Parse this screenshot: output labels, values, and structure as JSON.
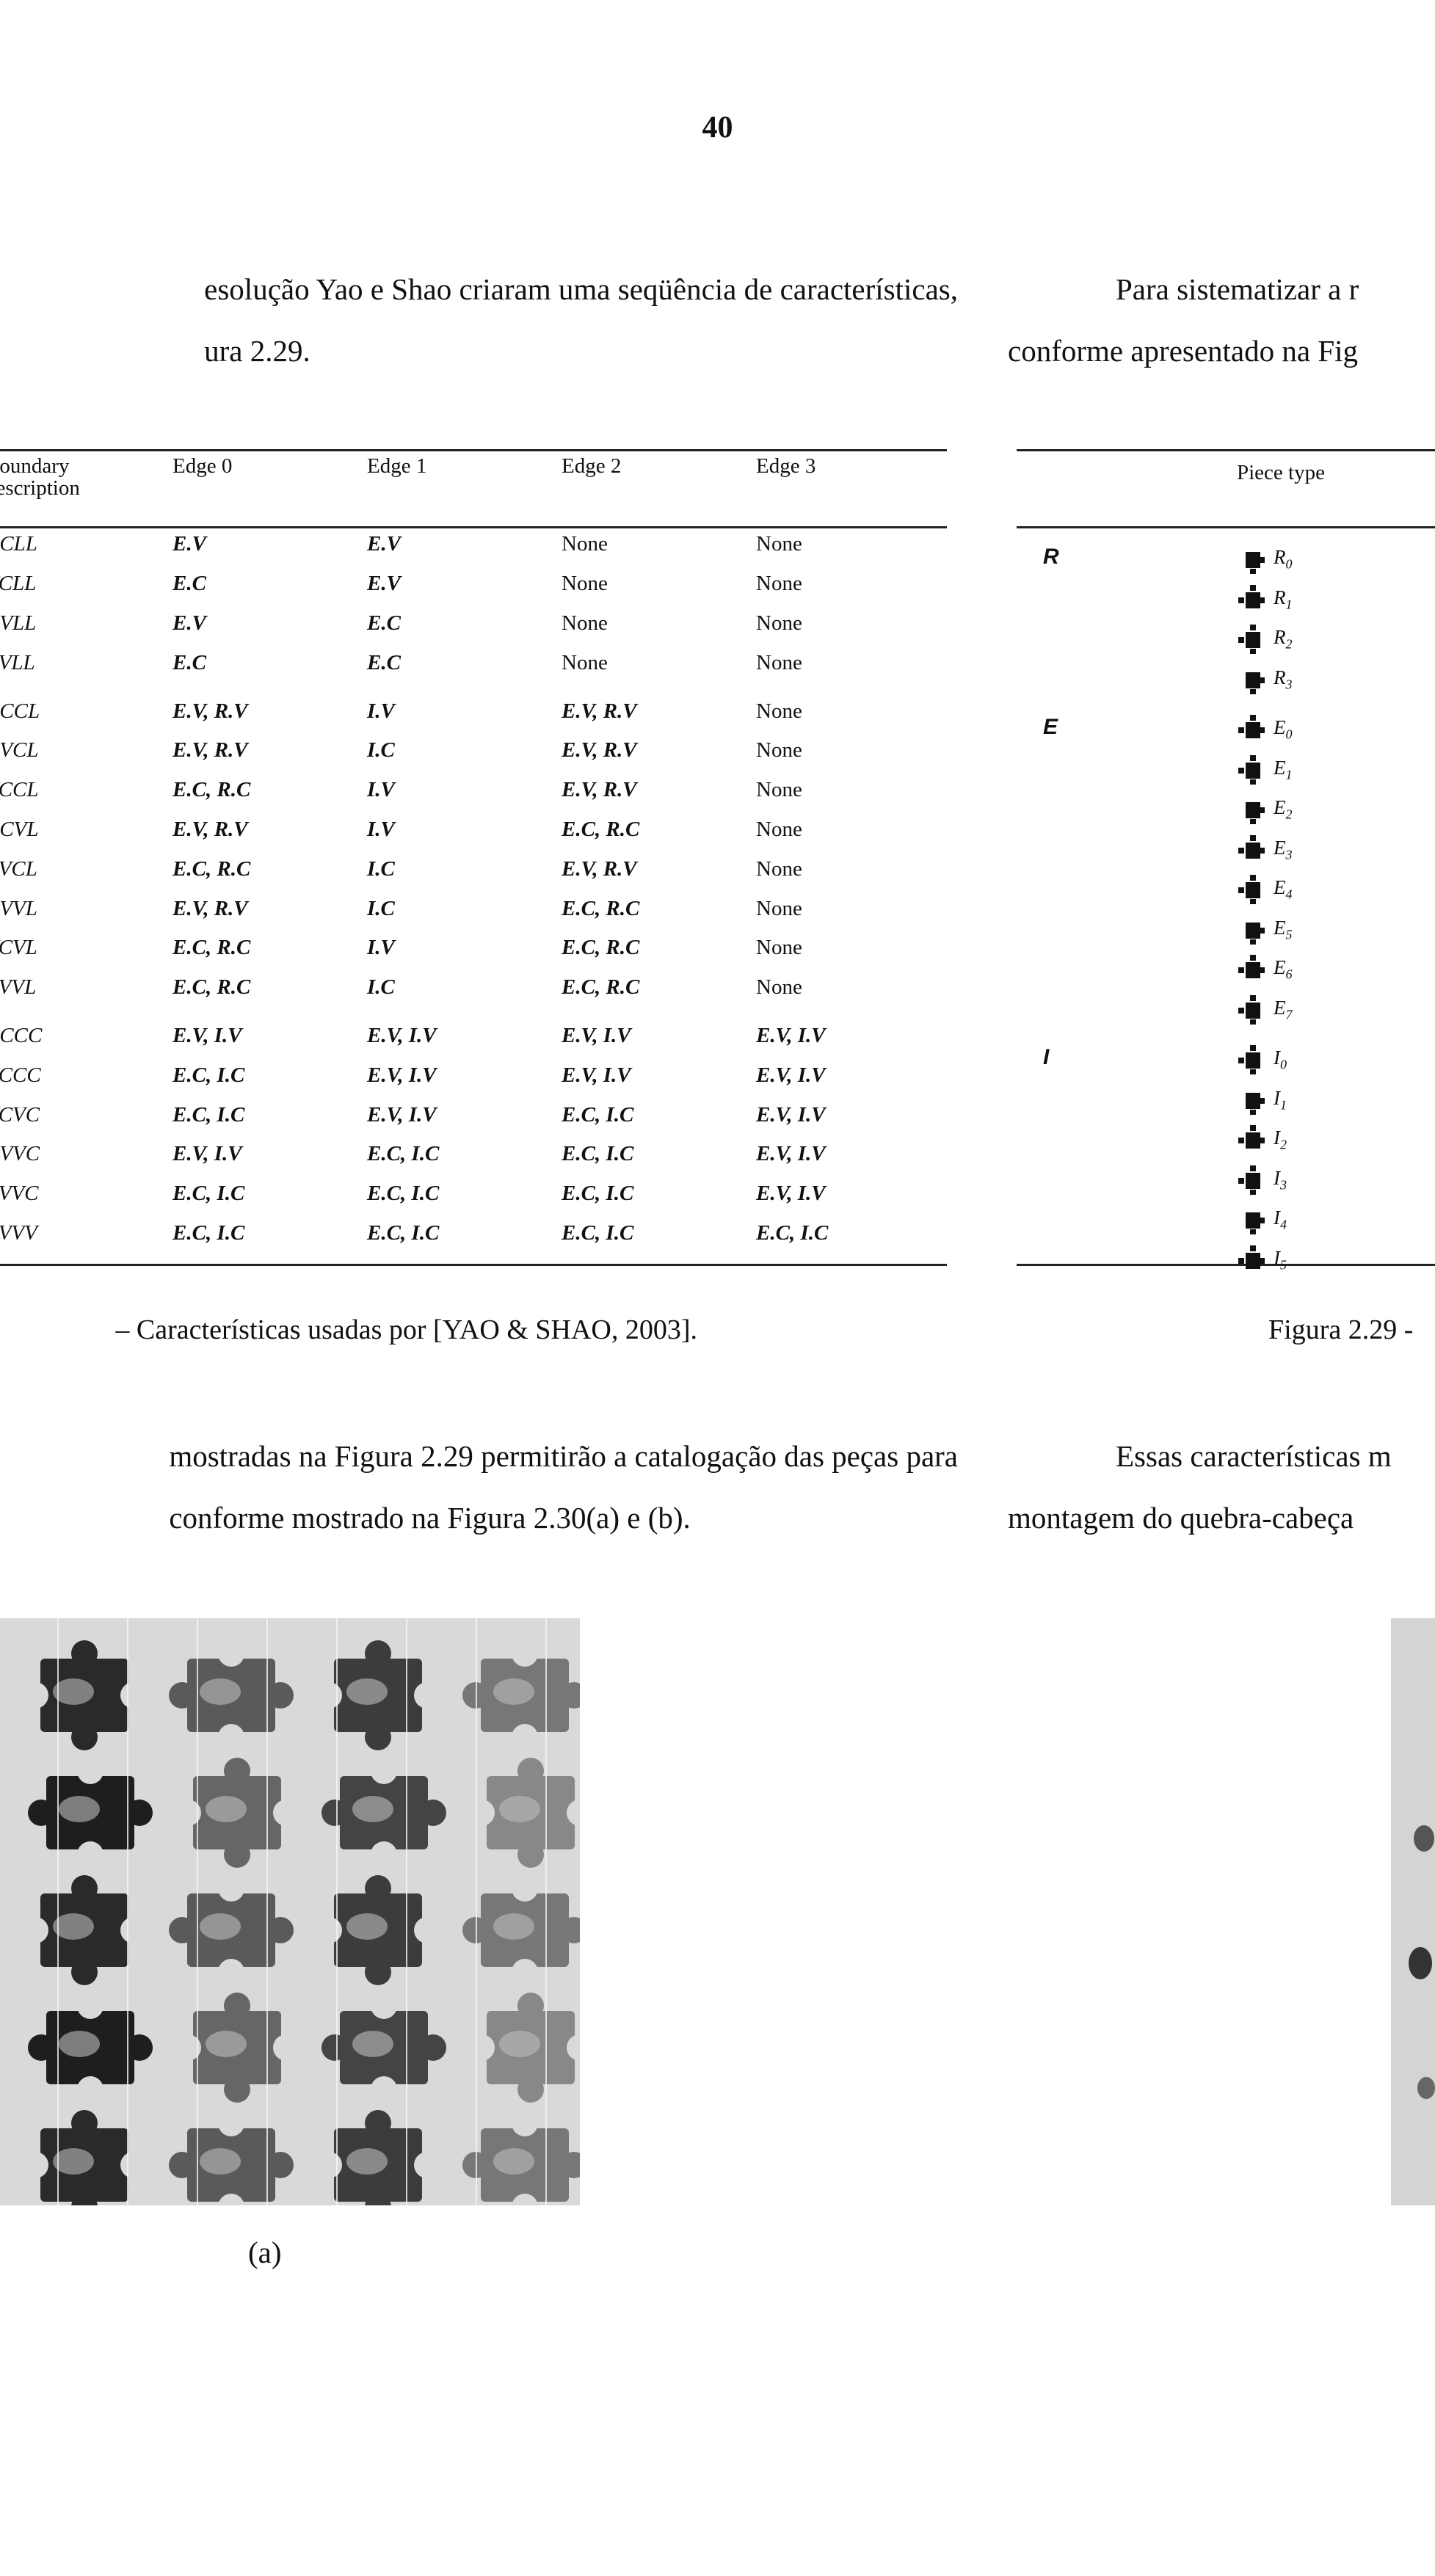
{
  "page_number": "40",
  "paragraph_left_a": {
    "line1": "esolução Yao e Shao criaram uma seqüência de características,",
    "line2": "ura 2.29."
  },
  "paragraph_right_a": {
    "line1": "Para sistematizar a r",
    "line2": "conforme apresentado na Fig"
  },
  "feature_table": {
    "headers": [
      "Boundary\ndescription",
      "Edge 0",
      "Edge 1",
      "Edge 2",
      "Edge 3"
    ],
    "rows": [
      [
        "CCLL",
        "E.V",
        "E.V",
        "None",
        "None"
      ],
      [
        "VCLL",
        "E.C",
        "E.V",
        "None",
        "None"
      ],
      [
        "CVLL",
        "E.V",
        "E.C",
        "None",
        "None"
      ],
      [
        "VVLL",
        "E.C",
        "E.C",
        "None",
        "None"
      ],
      [
        "CCCL",
        "E.V, R.V",
        "I.V",
        "E.V, R.V",
        "None"
      ],
      [
        "CVCL",
        "E.V, R.V",
        "I.C",
        "E.V, R.V",
        "None"
      ],
      [
        "VCCL",
        "E.C, R.C",
        "I.V",
        "E.V, R.V",
        "None"
      ],
      [
        "CCVL",
        "E.V, R.V",
        "I.V",
        "E.C, R.C",
        "None"
      ],
      [
        "VVCL",
        "E.C, R.C",
        "I.C",
        "E.V, R.V",
        "None"
      ],
      [
        "CVVL",
        "E.V, R.V",
        "I.C",
        "E.C, R.C",
        "None"
      ],
      [
        "VCVL",
        "E.C, R.C",
        "I.V",
        "E.C, R.C",
        "None"
      ],
      [
        "VVVL",
        "E.C, R.C",
        "I.C",
        "E.C, R.C",
        "None"
      ],
      [
        "CCCC",
        "E.V, I.V",
        "E.V, I.V",
        "E.V, I.V",
        "E.V, I.V"
      ],
      [
        "VCCC",
        "E.C, I.C",
        "E.V, I.V",
        "E.V, I.V",
        "E.V, I.V"
      ],
      [
        "VCVC",
        "E.C, I.C",
        "E.V, I.V",
        "E.C, I.C",
        "E.V, I.V"
      ],
      [
        "CVVC",
        "E.V, I.V",
        "E.C, I.C",
        "E.C, I.C",
        "E.V, I.V"
      ],
      [
        "VVVC",
        "E.C, I.C",
        "E.C, I.C",
        "E.C, I.C",
        "E.V, I.V"
      ],
      [
        "VVVV",
        "E.C, I.C",
        "E.C, I.C",
        "E.C, I.C",
        "E.C, I.C"
      ]
    ]
  },
  "piece_table": {
    "header": "Piece type",
    "groups": [
      {
        "name": "R",
        "pieces": [
          [
            "R",
            "0"
          ],
          [
            "R",
            "1"
          ],
          [
            "R",
            "2"
          ],
          [
            "R",
            "3"
          ]
        ]
      },
      {
        "name": "E",
        "pieces": [
          [
            "E",
            "0"
          ],
          [
            "E",
            "1"
          ],
          [
            "E",
            "2"
          ],
          [
            "E",
            "3"
          ],
          [
            "E",
            "4"
          ],
          [
            "E",
            "5"
          ],
          [
            "E",
            "6"
          ],
          [
            "E",
            "7"
          ]
        ]
      },
      {
        "name": "I",
        "pieces": [
          [
            "I",
            "0"
          ],
          [
            "I",
            "1"
          ],
          [
            "I",
            "2"
          ],
          [
            "I",
            "3"
          ],
          [
            "I",
            "4"
          ],
          [
            "I",
            "5"
          ]
        ]
      }
    ]
  },
  "caption_left": "– Características usadas por [YAO & SHAO, 2003].",
  "caption_right": "Figura 2.29 -",
  "paragraph_left_b": {
    "line1": "mostradas na Figura 2.29 permitirão a catalogação das peças para",
    "line2": "conforme mostrado na Figura 2.30(a) e (b)."
  },
  "paragraph_right_b": {
    "line1": "Essas características m",
    "line2": "montagem do quebra-cabeça"
  },
  "photo_label": "(a)"
}
